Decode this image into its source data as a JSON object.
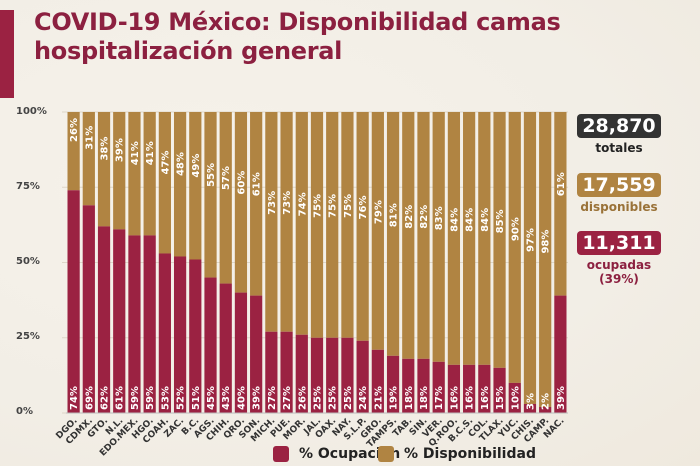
{
  "header": {
    "title": "COVID-19 México: Disponibilidad camas hospitalización general"
  },
  "colors": {
    "ocupacion": "#9b2242",
    "disponibilidad": "#b08442",
    "totales": "#333333",
    "title": "#8c2040"
  },
  "summary": {
    "totales_value": "28,870",
    "totales_label": "totales",
    "disponibles_value": "17,559",
    "disponibles_label": "disponibles",
    "ocupadas_value": "11,311",
    "ocupadas_label": "ocupadas",
    "ocupadas_pct": "(39%)"
  },
  "legend": {
    "ocupacion": "% Ocupación",
    "disponibilidad": "% Disponibilidad"
  },
  "chart_data": {
    "type": "bar",
    "stacked": true,
    "title": "COVID-19 México: Disponibilidad camas hospitalización general",
    "xlabel": "",
    "ylabel": "",
    "ylim": [
      0,
      100
    ],
    "yticks": [
      "0%",
      "25%",
      "50%",
      "75%",
      "100%"
    ],
    "legend_position": "bottom",
    "categories": [
      "DGO.",
      "CDMX.",
      "GTO.",
      "N.L.",
      "EDO.MEX.",
      "HGO.",
      "COAH.",
      "ZAC.",
      "B.C.",
      "AGS.",
      "CHIH.",
      "QRO.",
      "SON.",
      "MICH.",
      "PUE.",
      "MOR.",
      "JAL.",
      "OAX.",
      "NAY.",
      "S.L.P.",
      "GRO.",
      "TAMPS.",
      "TAB.",
      "SIN.",
      "VER.",
      "Q.ROO.",
      "B.C.S.",
      "COL.",
      "TLAX.",
      "YUC.",
      "CHIS.",
      "CAMP.",
      "NAC."
    ],
    "series": [
      {
        "name": "% Ocupación",
        "values": [
          74,
          69,
          62,
          61,
          59,
          59,
          53,
          52,
          51,
          45,
          43,
          40,
          39,
          27,
          27,
          26,
          25,
          25,
          25,
          24,
          21,
          19,
          18,
          18,
          17,
          16,
          16,
          16,
          15,
          10,
          3,
          2,
          39
        ]
      },
      {
        "name": "% Disponibilidad",
        "values": [
          26,
          31,
          38,
          39,
          41,
          41,
          47,
          48,
          49,
          55,
          57,
          60,
          61,
          73,
          73,
          74,
          75,
          75,
          75,
          76,
          79,
          81,
          82,
          82,
          83,
          84,
          84,
          84,
          85,
          90,
          97,
          98,
          61
        ]
      }
    ]
  }
}
